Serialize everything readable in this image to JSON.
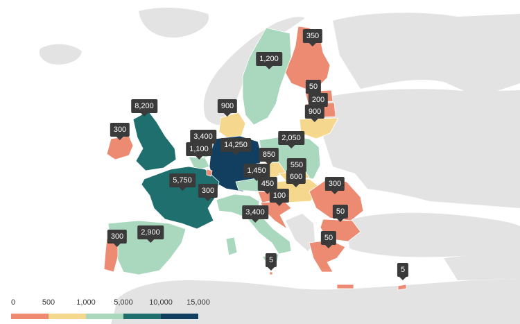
{
  "colors": {
    "background": "#ffffff",
    "land": "#e3e3e3",
    "bin0": "#ec8a72",
    "bin1": "#f5d88e",
    "bin2": "#a9d8bf",
    "bin3": "#1f6f6f",
    "bin4": "#123f60"
  },
  "legend": {
    "ticks": [
      "0",
      "500",
      "1,000",
      "5,000",
      "10,000",
      "15,000"
    ],
    "bins": [
      "bin0",
      "bin1",
      "bin2",
      "bin3",
      "bin4"
    ]
  },
  "map_data": {
    "type": "choropleth",
    "regions": [
      {
        "country": "Finland",
        "value": 350,
        "label": "350"
      },
      {
        "country": "Sweden",
        "value": 1200,
        "label": "1,200"
      },
      {
        "country": "Estonia",
        "value": 50,
        "label": "50"
      },
      {
        "country": "Latvia",
        "value": 200,
        "label": "200"
      },
      {
        "country": "Lithuania",
        "value": 900,
        "label": "900"
      },
      {
        "country": "Denmark",
        "value": 900,
        "label": "900"
      },
      {
        "country": "Ireland",
        "value": 300,
        "label": "300"
      },
      {
        "country": "United Kingdom",
        "value": 8200,
        "label": "8,200"
      },
      {
        "country": "Netherlands",
        "value": 3400,
        "label": "3,400"
      },
      {
        "country": "Belgium",
        "value": 1100,
        "label": "1,100"
      },
      {
        "country": "Germany",
        "value": 14250,
        "label": "14,250"
      },
      {
        "country": "Poland",
        "value": 2050,
        "label": "2,050"
      },
      {
        "country": "Czechia",
        "value": 850,
        "label": "850"
      },
      {
        "country": "Austria",
        "value": 1450,
        "label": "1,450"
      },
      {
        "country": "Slovakia",
        "value": 550,
        "label": "550"
      },
      {
        "country": "Hungary",
        "value": 600,
        "label": "600"
      },
      {
        "country": "Slovenia",
        "value": 450,
        "label": "450"
      },
      {
        "country": "Croatia",
        "value": 100,
        "label": "100"
      },
      {
        "country": "France",
        "value": 5750,
        "label": "5,750"
      },
      {
        "country": "Luxembourg",
        "value": 300,
        "label": "300"
      },
      {
        "country": "Italy",
        "value": 3400,
        "label": "3,400"
      },
      {
        "country": "Romania",
        "value": 300,
        "label": "300"
      },
      {
        "country": "Bulgaria",
        "value": 50,
        "label": "50"
      },
      {
        "country": "Greece",
        "value": 50,
        "label": "50"
      },
      {
        "country": "Spain",
        "value": 2900,
        "label": "2,900"
      },
      {
        "country": "Portugal",
        "value": 300,
        "label": "300"
      },
      {
        "country": "Malta",
        "value": 5,
        "label": "5"
      },
      {
        "country": "Cyprus",
        "value": 5,
        "label": "5"
      }
    ]
  }
}
